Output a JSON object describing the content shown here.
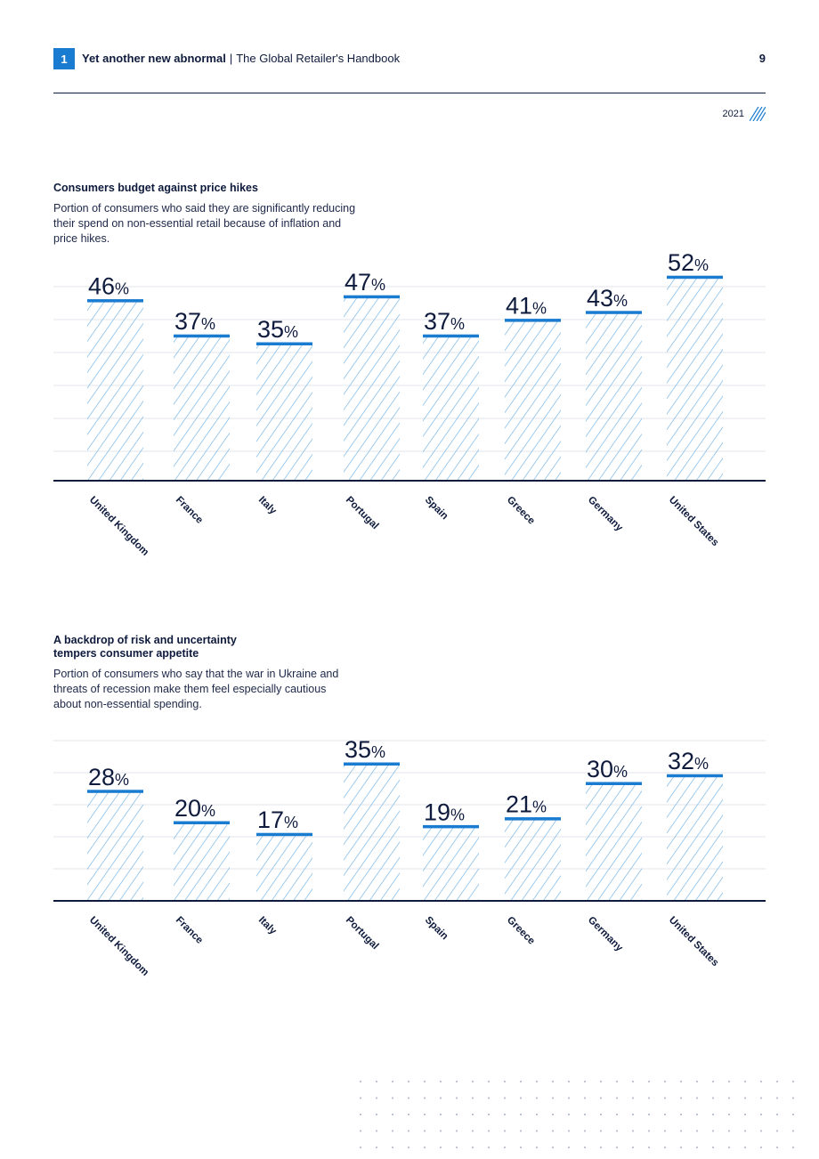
{
  "header": {
    "chapter": "1",
    "section_title": "Yet another new abnormal",
    "separator": "|",
    "book_title": "The Global Retailer's Handbook",
    "page_number": "9"
  },
  "year_tag": "2021",
  "colors": {
    "accent": "#1a7cd0",
    "hatch": "#6fb0e3",
    "text": "#0f1b3d"
  },
  "chart_data": [
    {
      "type": "bar",
      "title": "Consumers budget against price hikes",
      "subtitle": "Portion of consumers who said they are significantly reducing their spend on non-essential retail because of inflation and price hikes.",
      "categories": [
        "United Kingdom",
        "France",
        "Italy",
        "Portugal",
        "Spain",
        "Greece",
        "Germany",
        "United States"
      ],
      "values": [
        46,
        37,
        35,
        47,
        37,
        41,
        43,
        52
      ],
      "unit": "%",
      "xlabel": "",
      "ylabel": "",
      "ylim": [
        0,
        55
      ],
      "grid": true
    },
    {
      "type": "bar",
      "title": "A backdrop of risk and uncertainty tempers consumer appetite",
      "subtitle": "Portion of consumers who say that the war in Ukraine and threats of recession make them feel especially cautious about non-essential spending.",
      "categories": [
        "United Kingdom",
        "France",
        "Italy",
        "Portugal",
        "Spain",
        "Greece",
        "Germany",
        "United States"
      ],
      "values": [
        28,
        20,
        17,
        35,
        19,
        21,
        30,
        32
      ],
      "unit": "%",
      "xlabel": "",
      "ylabel": "",
      "ylim": [
        0,
        37
      ],
      "grid": true
    }
  ]
}
